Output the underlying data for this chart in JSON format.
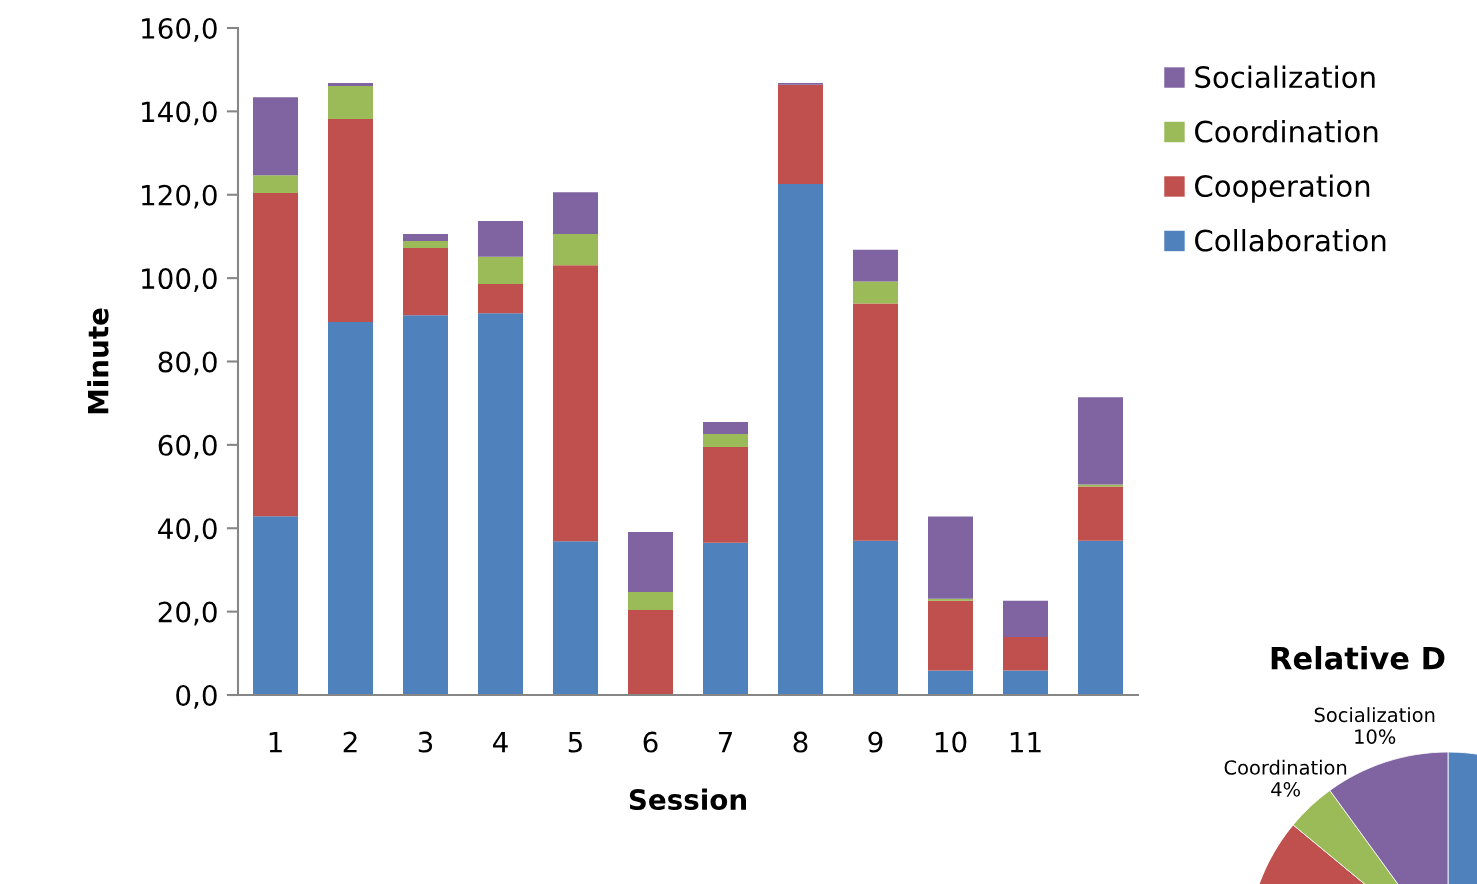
{
  "chart_data": [
    {
      "type": "bar",
      "stacked": true,
      "xlabel": "Session",
      "ylabel": "Minute",
      "categories": [
        "1",
        "2",
        "3",
        "4",
        "5",
        "6",
        "7",
        "8",
        "9",
        "10",
        "11",
        null
      ],
      "series": [
        {
          "name": "Collaboration",
          "color": "#4f81bd",
          "values": [
            42.9,
            89.5,
            91.1,
            91.6,
            36.9,
            0,
            36.5,
            122.6,
            37.0,
            5.9,
            5.9,
            37.0
          ]
        },
        {
          "name": "Cooperation",
          "color": "#c0504d",
          "values": [
            77.5,
            48.7,
            16.1,
            7.0,
            66.2,
            20.4,
            23.0,
            23.8,
            56.9,
            16.7,
            8.0,
            13.0
          ]
        },
        {
          "name": "Coordination",
          "color": "#9bbb59",
          "values": [
            4.3,
            7.9,
            1.7,
            6.5,
            7.5,
            4.3,
            3.1,
            0,
            5.3,
            0.5,
            0,
            0.5
          ]
        },
        {
          "name": "Socialization",
          "color": "#8064a2",
          "values": [
            18.7,
            0.7,
            1.7,
            8.6,
            10.0,
            14.4,
            2.9,
            0.4,
            7.6,
            19.7,
            8.7,
            20.9
          ]
        }
      ],
      "ylim": [
        0,
        160
      ],
      "yticks": [
        {
          "value": 0,
          "label": "0,0"
        },
        {
          "value": 20,
          "label": "20,0"
        },
        {
          "value": 40,
          "label": "40,0"
        },
        {
          "value": 60,
          "label": "60,0"
        },
        {
          "value": 80,
          "label": "80,0"
        },
        {
          "value": 100,
          "label": "100,0"
        },
        {
          "value": 120,
          "label": "120,0"
        },
        {
          "value": 140,
          "label": "140,0"
        },
        {
          "value": 160,
          "label": "160,0"
        }
      ],
      "legend": "right",
      "grid": false
    },
    {
      "type": "pie",
      "title": "Relative D",
      "categories": [
        null,
        null,
        "Coordination",
        "Socialization"
      ],
      "values": [
        53,
        33,
        4,
        10
      ],
      "value_labels": [
        null,
        null,
        "4%",
        "10%"
      ],
      "colors": [
        "#4f81bd",
        "#c0504d",
        "#9bbb59",
        "#8064a2"
      ]
    }
  ]
}
